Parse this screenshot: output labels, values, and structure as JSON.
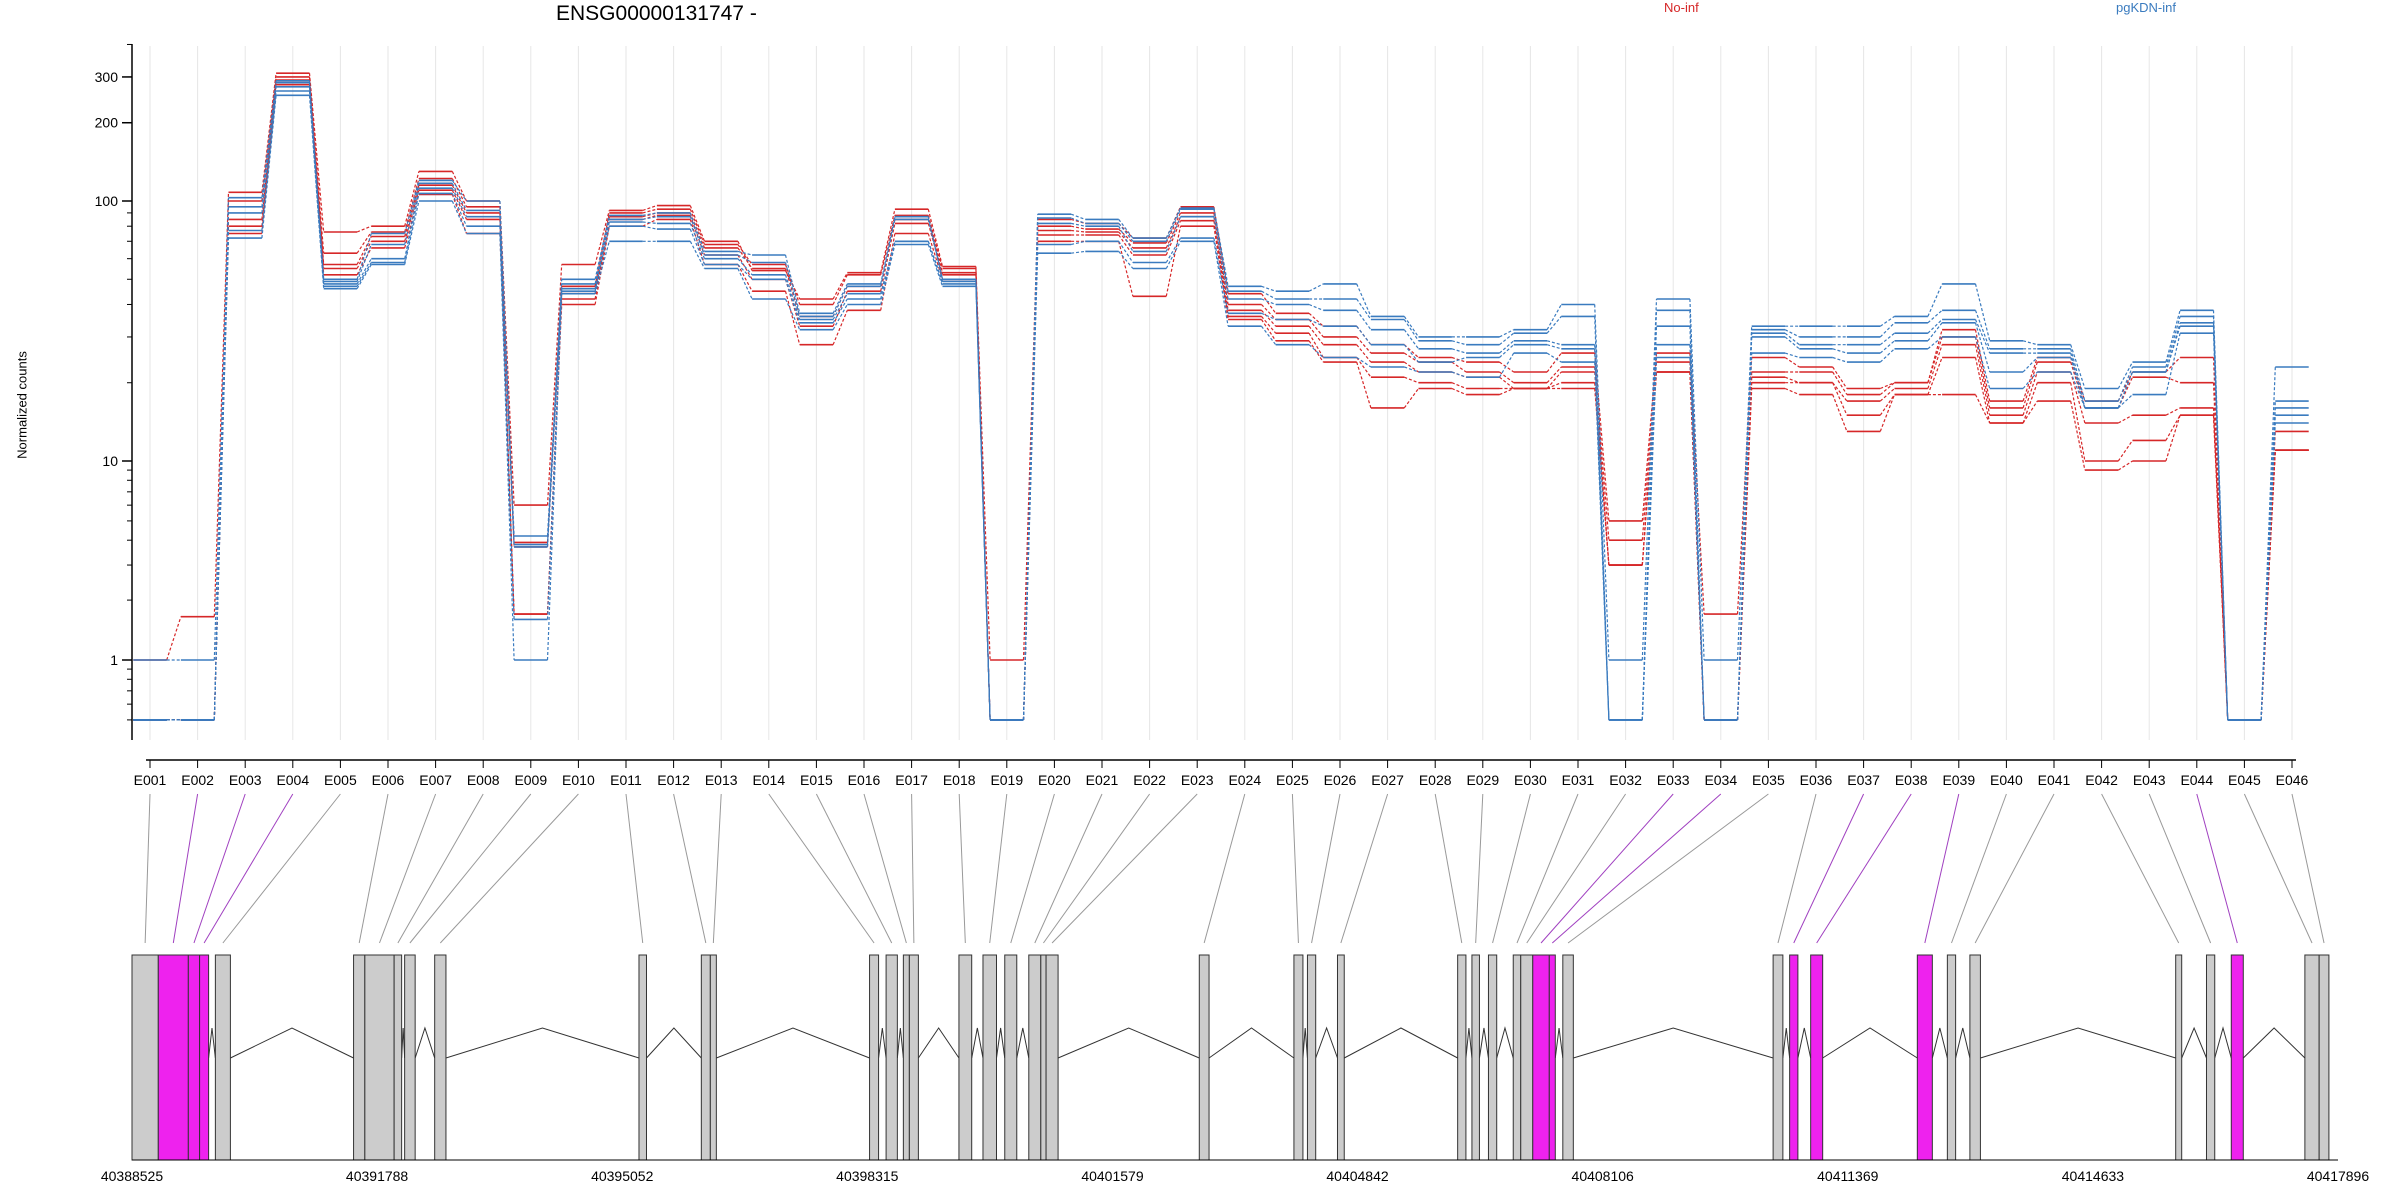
{
  "chart_data": {
    "type": "line",
    "title": "ENSG00000131747 -",
    "xlabel": "",
    "ylabel": "Normalized counts",
    "y_scale": "log",
    "ylim": [
      0.5,
      420
    ],
    "y_ticks": [
      1,
      10,
      100,
      200,
      300
    ],
    "y_tick_labels": [
      "1",
      "10",
      "100",
      "200",
      "300"
    ],
    "grid": "vertical lines at each exon",
    "legend_placement": "top",
    "legend": [
      {
        "name": "No-inf",
        "color": "#d62728"
      },
      {
        "name": "pgKDN-inf",
        "color": "#3a7bbf"
      }
    ],
    "categories": [
      "E001",
      "E002",
      "E003",
      "E004",
      "E005",
      "E006",
      "E007",
      "E008",
      "E009",
      "E010",
      "E011",
      "E012",
      "E013",
      "E014",
      "E015",
      "E016",
      "E017",
      "E018",
      "E019",
      "E020",
      "E021",
      "E022",
      "E023",
      "E024",
      "E025",
      "E026",
      "E027",
      "E028",
      "E029",
      "E030",
      "E031",
      "E032",
      "E033",
      "E034",
      "E035",
      "E036",
      "E037",
      "E038",
      "E039",
      "E040",
      "E041",
      "E042",
      "E043",
      "E044",
      "E045",
      "E046"
    ],
    "series": [
      {
        "group": "No-inf",
        "values": [
          1.0,
          1.65,
          108,
          310,
          76,
          80,
          130,
          100,
          6.0,
          57,
          92,
          96,
          70,
          54,
          42,
          53,
          93,
          56,
          1.0,
          85,
          82,
          72,
          95,
          44,
          37,
          33,
          28,
          25,
          24,
          22,
          26,
          5.0,
          26,
          1.7,
          25,
          23,
          19,
          20,
          32,
          17,
          25,
          17,
          22,
          25,
          0.5,
          11
        ]
      },
      {
        "group": "No-inf",
        "values": [
          0.5,
          0.5,
          100,
          300,
          63,
          76,
          122,
          95,
          3.9,
          47,
          90,
          93,
          68,
          57,
          40,
          52,
          88,
          55,
          0.5,
          80,
          78,
          69,
          90,
          40,
          35,
          30,
          26,
          24,
          22,
          20,
          23,
          4.0,
          24,
          0.5,
          22,
          22,
          18,
          20,
          30,
          16,
          24,
          16,
          21,
          20,
          0.5,
          13
        ]
      },
      {
        "group": "No-inf",
        "values": [
          0.5,
          0.5,
          85,
          292,
          57,
          73,
          115,
          90,
          3.7,
          44,
          87,
          90,
          66,
          55,
          36,
          47,
          85,
          53,
          0.5,
          77,
          76,
          66,
          87,
          38,
          33,
          28,
          24,
          22,
          21,
          19,
          22,
          3.0,
          22,
          0.5,
          21,
          20,
          17,
          19,
          28,
          15,
          22,
          14,
          15,
          16,
          0.5,
          11
        ]
      },
      {
        "group": "No-inf",
        "values": [
          0.5,
          0.5,
          80,
          285,
          55,
          70,
          110,
          85,
          1.7,
          42,
          85,
          88,
          62,
          50,
          33,
          45,
          82,
          52,
          0.5,
          74,
          74,
          62,
          84,
          36,
          31,
          25,
          21,
          20,
          19,
          19,
          20,
          3.0,
          22,
          0.5,
          20,
          20,
          15,
          18,
          25,
          14,
          20,
          10,
          12,
          15,
          0.5,
          11
        ]
      },
      {
        "group": "No-inf",
        "values": [
          0.5,
          0.5,
          75,
          280,
          52,
          66,
          106,
          75,
          1.7,
          40,
          80,
          85,
          57,
          45,
          28,
          38,
          75,
          50,
          0.5,
          70,
          70,
          43,
          80,
          35,
          29,
          24,
          16,
          19,
          18,
          19,
          19,
          3.0,
          22,
          0.5,
          19,
          18,
          13,
          18,
          18,
          14,
          17,
          9,
          10,
          15,
          0.5,
          11
        ]
      },
      {
        "group": "pgKDN-inf",
        "values": [
          1.0,
          1.0,
          103,
          290,
          50,
          75,
          120,
          100,
          4.2,
          50,
          88,
          90,
          64,
          62,
          37,
          48,
          87,
          50,
          0.5,
          89,
          85,
          72,
          94,
          47,
          45,
          48,
          36,
          30,
          30,
          32,
          40,
          1.0,
          42,
          1.0,
          33,
          33,
          33,
          36,
          48,
          29,
          28,
          19,
          24,
          38,
          0.5,
          23
        ]
      },
      {
        "group": "pgKDN-inf",
        "values": [
          0.5,
          0.5,
          95,
          285,
          49,
          68,
          117,
          92,
          3.8,
          48,
          85,
          87,
          62,
          58,
          36,
          47,
          85,
          50,
          0.5,
          86,
          82,
          70,
          93,
          45,
          42,
          42,
          35,
          29,
          28,
          31,
          36,
          0.5,
          38,
          0.5,
          32,
          30,
          30,
          34,
          38,
          27,
          27,
          17,
          23,
          36,
          0.5,
          17
        ]
      },
      {
        "group": "pgKDN-inf",
        "values": [
          0.5,
          0.5,
          90,
          275,
          48,
          60,
          112,
          87,
          3.7,
          46,
          83,
          82,
          60,
          52,
          35,
          44,
          70,
          49,
          0.5,
          82,
          80,
          64,
          87,
          42,
          40,
          38,
          32,
          27,
          26,
          29,
          28,
          0.5,
          33,
          0.5,
          31,
          28,
          28,
          31,
          35,
          26,
          26,
          16,
          22,
          34,
          0.5,
          16
        ]
      },
      {
        "group": "pgKDN-inf",
        "values": [
          0.5,
          0.5,
          77,
          265,
          47,
          58,
          107,
          80,
          1.6,
          45,
          80,
          78,
          57,
          50,
          34,
          42,
          70,
          48,
          0.5,
          68,
          70,
          58,
          72,
          37,
          35,
          33,
          28,
          24,
          25,
          28,
          27,
          0.5,
          28,
          0.5,
          30,
          27,
          26,
          29,
          34,
          22,
          25,
          16,
          22,
          33,
          0.5,
          15
        ]
      },
      {
        "group": "pgKDN-inf",
        "values": [
          0.5,
          0.5,
          72,
          255,
          46,
          57,
          100,
          75,
          1.0,
          44,
          70,
          70,
          55,
          42,
          32,
          40,
          68,
          47,
          0.5,
          63,
          64,
          55,
          70,
          33,
          28,
          25,
          23,
          22,
          21,
          26,
          24,
          0.5,
          25,
          0.5,
          26,
          25,
          24,
          27,
          30,
          19,
          22,
          16,
          18,
          31,
          0.5,
          14
        ]
      }
    ],
    "genomic_axis": {
      "tick_labels": [
        "40388525",
        "40391788",
        "40395052",
        "40398315",
        "40401579",
        "40404842",
        "40408106",
        "40411369",
        "40414633",
        "40417896"
      ],
      "tick_values": [
        40388525,
        40391788,
        40395052,
        40398315,
        40401579,
        40404842,
        40408106,
        40411369,
        40414633,
        40417896
      ],
      "range": [
        40388525,
        40417896
      ]
    },
    "exon_model": {
      "highlight_color": "#ee22ee",
      "base_color": "#cccccc",
      "exons": [
        {
          "name": "E001",
          "start": 40388525,
          "end": 40388875,
          "highlight": false
        },
        {
          "name": "E002",
          "start": 40388875,
          "end": 40389275,
          "highlight": true
        },
        {
          "name": "E003",
          "start": 40389275,
          "end": 40389425,
          "highlight": true
        },
        {
          "name": "E004",
          "start": 40389425,
          "end": 40389545,
          "highlight": true
        },
        {
          "name": "E005",
          "start": 40389635,
          "end": 40389835,
          "highlight": false
        },
        {
          "name": "E006",
          "start": 40391475,
          "end": 40391625,
          "highlight": false
        },
        {
          "name": "E007",
          "start": 40391625,
          "end": 40392015,
          "highlight": false
        },
        {
          "name": "E008",
          "start": 40392015,
          "end": 40392115,
          "highlight": false
        },
        {
          "name": "E009",
          "start": 40392155,
          "end": 40392295,
          "highlight": false
        },
        {
          "name": "E010",
          "start": 40392555,
          "end": 40392705,
          "highlight": false
        },
        {
          "name": "E011",
          "start": 40395275,
          "end": 40395375,
          "highlight": false
        },
        {
          "name": "E012",
          "start": 40396105,
          "end": 40396225,
          "highlight": false
        },
        {
          "name": "E013",
          "start": 40396225,
          "end": 40396305,
          "highlight": false
        },
        {
          "name": "E014",
          "start": 40398345,
          "end": 40398465,
          "highlight": false
        },
        {
          "name": "E015",
          "start": 40398565,
          "end": 40398715,
          "highlight": false
        },
        {
          "name": "E016",
          "start": 40398795,
          "end": 40398875,
          "highlight": false
        },
        {
          "name": "E017",
          "start": 40398875,
          "end": 40398995,
          "highlight": false
        },
        {
          "name": "E018",
          "start": 40399535,
          "end": 40399705,
          "highlight": false
        },
        {
          "name": "E019",
          "start": 40399855,
          "end": 40400035,
          "highlight": false
        },
        {
          "name": "E020",
          "start": 40400145,
          "end": 40400305,
          "highlight": false
        },
        {
          "name": "E021",
          "start": 40400465,
          "end": 40400625,
          "highlight": false
        },
        {
          "name": "E022",
          "start": 40400625,
          "end": 40400695,
          "highlight": false
        },
        {
          "name": "E023",
          "start": 40400695,
          "end": 40400855,
          "highlight": false
        },
        {
          "name": "E024",
          "start": 40402735,
          "end": 40402865,
          "highlight": false
        },
        {
          "name": "E025",
          "start": 40403995,
          "end": 40404115,
          "highlight": false
        },
        {
          "name": "E026",
          "start": 40404175,
          "end": 40404285,
          "highlight": false
        },
        {
          "name": "E027",
          "start": 40404575,
          "end": 40404665,
          "highlight": false
        },
        {
          "name": "E028",
          "start": 40406175,
          "end": 40406285,
          "highlight": false
        },
        {
          "name": "E029",
          "start": 40406365,
          "end": 40406465,
          "highlight": false
        },
        {
          "name": "E030",
          "start": 40406585,
          "end": 40406695,
          "highlight": false
        },
        {
          "name": "E031",
          "start": 40406915,
          "end": 40407015,
          "highlight": false
        },
        {
          "name": "E032",
          "start": 40407015,
          "end": 40407175,
          "highlight": false
        },
        {
          "name": "E033",
          "start": 40407175,
          "end": 40407395,
          "highlight": true
        },
        {
          "name": "E034",
          "start": 40407395,
          "end": 40407475,
          "highlight": true
        },
        {
          "name": "E035",
          "start": 40407575,
          "end": 40407715,
          "highlight": false
        },
        {
          "name": "E036",
          "start": 40410375,
          "end": 40410505,
          "highlight": false
        },
        {
          "name": "E037",
          "start": 40410595,
          "end": 40410705,
          "highlight": true
        },
        {
          "name": "E038",
          "start": 40410875,
          "end": 40411035,
          "highlight": true
        },
        {
          "name": "E039",
          "start": 40412295,
          "end": 40412495,
          "highlight": true
        },
        {
          "name": "E040",
          "start": 40412695,
          "end": 40412805,
          "highlight": false
        },
        {
          "name": "E041",
          "start": 40412995,
          "end": 40413135,
          "highlight": false
        },
        {
          "name": "E042",
          "start": 40415735,
          "end": 40415815,
          "highlight": false
        },
        {
          "name": "E043",
          "start": 40416145,
          "end": 40416255,
          "highlight": false
        },
        {
          "name": "E044",
          "start": 40416475,
          "end": 40416635,
          "highlight": true
        },
        {
          "name": "E045",
          "start": 40417455,
          "end": 40417645,
          "highlight": false
        },
        {
          "name": "E046",
          "start": 40417645,
          "end": 40417775,
          "highlight": false
        }
      ]
    }
  },
  "colors": {
    "no_inf": "#d62728",
    "pgkdn_inf": "#3a7bbf",
    "highlight": "#ee22ee",
    "exon_base": "#cccccc",
    "grid": "#e6e6e6"
  }
}
